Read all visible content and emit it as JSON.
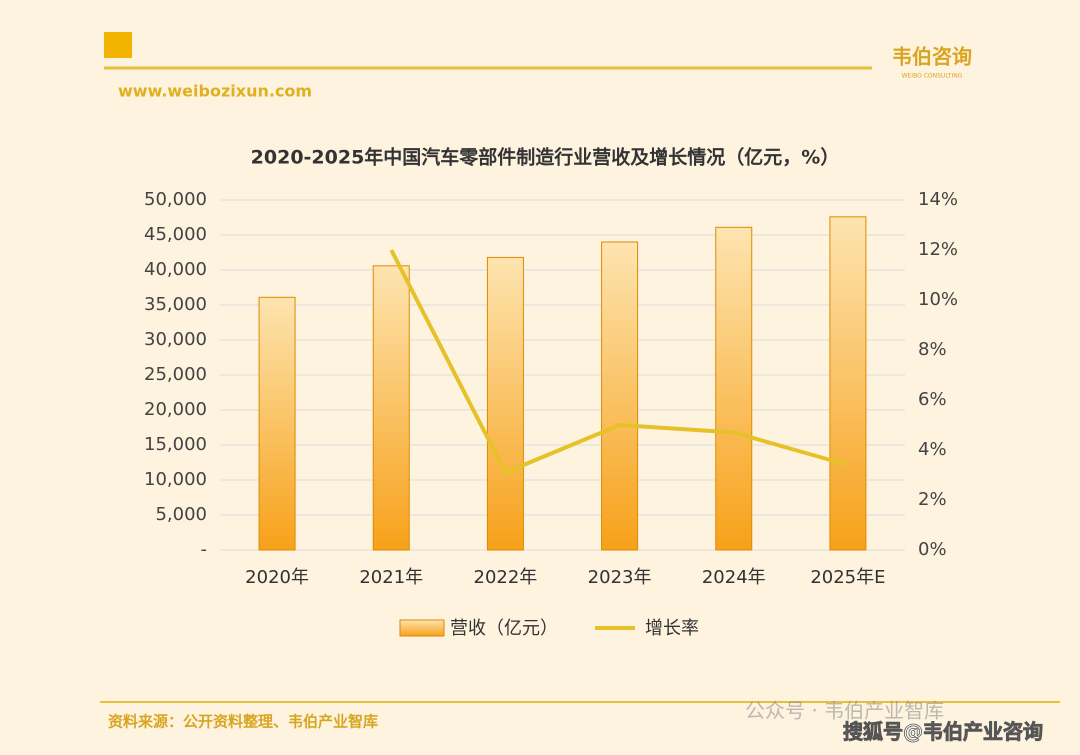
{
  "header": {
    "logo": "韦伯咨询",
    "logo_sub": "WEIBO CONSULTING",
    "url": "www.weibozixun.com"
  },
  "chart_data": {
    "type": "bar_line",
    "title": "2020-2025年中国汽车零部件制造行业营收及增长情况（亿元，%）",
    "categories": [
      "2020年",
      "2021年",
      "2022年",
      "2023年",
      "2024年",
      "2025年E"
    ],
    "series": [
      {
        "name": "营收（亿元）",
        "color": "#f7a11a",
        "type": "bar",
        "values": [
          36100,
          40600,
          41800,
          44000,
          46100,
          47600
        ]
      },
      {
        "name": "增长率",
        "color": "#e6c12a",
        "type": "line",
        "axis": "y2",
        "values": [
          null,
          12.0,
          3.1,
          5.0,
          4.7,
          3.4
        ]
      }
    ],
    "ylim": [
      0,
      50000
    ],
    "yticks": [
      {
        "value": 0,
        "label": "-"
      },
      {
        "value": 5000,
        "label": "5,000"
      },
      {
        "value": 10000,
        "label": "10,000"
      },
      {
        "value": 15000,
        "label": "15,000"
      },
      {
        "value": 20000,
        "label": "20,000"
      },
      {
        "value": 25000,
        "label": "25,000"
      },
      {
        "value": 30000,
        "label": "30,000"
      },
      {
        "value": 35000,
        "label": "35,000"
      },
      {
        "value": 40000,
        "label": "40,000"
      },
      {
        "value": 45000,
        "label": "45,000"
      },
      {
        "value": 50000,
        "label": "50,000"
      }
    ],
    "y2lim": [
      0,
      14
    ],
    "y2ticks": [
      {
        "value": 0,
        "label": "0%"
      },
      {
        "value": 2,
        "label": "2%"
      },
      {
        "value": 4,
        "label": "4%"
      },
      {
        "value": 6,
        "label": "6%"
      },
      {
        "value": 8,
        "label": "8%"
      },
      {
        "value": 10,
        "label": "10%"
      },
      {
        "value": 12,
        "label": "12%"
      },
      {
        "value": 14,
        "label": "14%"
      }
    ],
    "grid": true
  },
  "footer": {
    "source": "资料来源：公开资料整理、韦伯产业智库",
    "watermark": "公众号 · 韦伯产业智库",
    "watermark2": "搜狐号@韦伯产业咨询"
  }
}
